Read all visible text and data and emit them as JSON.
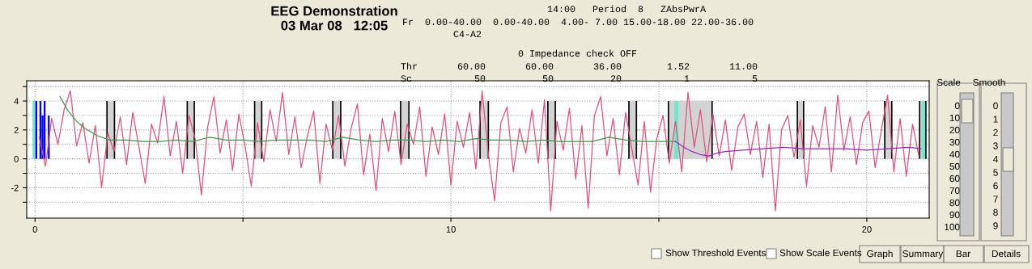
{
  "chart_data": {
    "type": "line",
    "title": "EEG Demonstration",
    "subtitle": "03 Mar 08   12:05",
    "annotations": [
      "14:00   Period  8   ZAbsPwrA",
      "Fr  0.00-40.00  0.00-40.00  4.00- 7.00 15.00-18.00 22.00-36.00",
      "C4-A2",
      "0 Impedance check OFF",
      "Thr       60.00       60.00       36.00        1.52       11.00",
      "Sc           50          50          20           1           5",
      "Scale",
      "0",
      "10",
      "20",
      "30",
      "40",
      "50",
      "60",
      "70",
      "80",
      "90",
      "100",
      "Smooth",
      "0",
      "1",
      "2",
      "3",
      "4",
      "5",
      "6",
      "7",
      "8",
      "9",
      "Show Threshold Events",
      "Show Scale Events",
      "Graph",
      "Summary",
      "Bar",
      "Details"
    ],
    "xlim": [
      -0.2,
      21.5
    ],
    "ylim": [
      -4.1,
      5.4
    ],
    "xticks": [
      0,
      {
        "value": 5,
        "label": null
      },
      10,
      {
        "value": 15,
        "label": null
      },
      20
    ],
    "yticks": [
      {
        "value": -3,
        "label": null
      },
      -2,
      {
        "value": -1,
        "label": null
      },
      0,
      {
        "value": 1,
        "label": null
      },
      2,
      {
        "value": 3,
        "label": null
      },
      4,
      {
        "value": 5,
        "label": null
      }
    ],
    "grid": true,
    "legend": false,
    "marker": "none",
    "line_style": "solid",
    "series": [
      {
        "type": "area",
        "color": "#d3d3d3",
        "x": [
          1.73,
          1.91,
          1.95,
          3.66,
          3.83,
          3.9,
          5.28,
          5.45,
          5.5,
          7.16,
          7.35,
          7.4,
          8.79,
          8.99,
          9.0,
          10.7,
          10.9,
          11.0,
          12.33,
          12.51,
          12.6,
          14.28,
          14.46,
          14.5,
          15.23,
          16.28,
          16.3,
          18.33,
          18.48,
          18.5,
          20.43,
          20.6,
          20.7,
          21.27,
          21.42
        ],
        "values": [
          4,
          4,
          null,
          4,
          4,
          null,
          4,
          4,
          null,
          4,
          4,
          null,
          4,
          4,
          null,
          4,
          4,
          null,
          4,
          4,
          null,
          4,
          4,
          null,
          4,
          4,
          null,
          4,
          4,
          null,
          4,
          4,
          null,
          4,
          4
        ]
      },
      {
        "type": "area",
        "color": "#70e8d0",
        "x": [
          -0.06,
          0.0,
          0.1,
          15.37,
          15.47,
          15.5,
          21.32,
          21.42
        ],
        "values": [
          4,
          4,
          null,
          4,
          4,
          null,
          4,
          4
        ]
      },
      {
        "type": "bar",
        "color": "#0000ff",
        "x": [
          0.03,
          0.08,
          0.13,
          0.18,
          0.23,
          0.28,
          0.33
        ],
        "values": [
          4,
          null,
          4,
          3,
          4,
          null,
          3
        ]
      },
      {
        "color": "#e0507a",
        "x": [
          0.1,
          0.25,
          0.4,
          0.55,
          0.7,
          0.85,
          1,
          1.15,
          1.3,
          1.45,
          1.6,
          1.75,
          1.9,
          2.05,
          2.2,
          2.35,
          2.5,
          2.65,
          2.8,
          2.95,
          3.1,
          3.25,
          3.4,
          3.55,
          3.7,
          3.85,
          4,
          4.15,
          4.3,
          4.45,
          4.6,
          4.75,
          4.9,
          5.05,
          5.2,
          5.35,
          5.5,
          5.65,
          5.8,
          5.95,
          6.1,
          6.25,
          6.4,
          6.55,
          6.7,
          6.85,
          7,
          7.15,
          7.3,
          7.45,
          7.6,
          7.75,
          7.9,
          8.05,
          8.2,
          8.35,
          8.5,
          8.65,
          8.8,
          8.95,
          9.1,
          9.25,
          9.4,
          9.55,
          9.7,
          9.85,
          10,
          10.15,
          10.3,
          10.45,
          10.6,
          10.75,
          10.9,
          11.05,
          11.2,
          11.35,
          11.5,
          11.65,
          11.8,
          11.95,
          12.1,
          12.25,
          12.4,
          12.55,
          12.7,
          12.85,
          13,
          13.15,
          13.3,
          13.45,
          13.6,
          13.75,
          13.9,
          14.05,
          14.2,
          14.35,
          14.5,
          14.65,
          14.8,
          14.95,
          15.1,
          15.25,
          15.4,
          15.55,
          15.7,
          15.85,
          16,
          16.15,
          16.3,
          16.45,
          16.6,
          16.75,
          16.9,
          17.05,
          17.2,
          17.35,
          17.5,
          17.65,
          17.8,
          17.95,
          18.1,
          18.25,
          18.4,
          18.55,
          18.7,
          18.85,
          19,
          19.15,
          19.3,
          19.45,
          19.6,
          19.75,
          19.9,
          20.05,
          20.2,
          20.35,
          20.5,
          20.65,
          20.8,
          20.95,
          21.1,
          21.25
        ],
        "values": [
          1.5,
          -0.5,
          2.8,
          1.0,
          3.4,
          4.7,
          0.9,
          2.5,
          -0.3,
          2.3,
          -2.0,
          1.8,
          0.5,
          2.9,
          -0.4,
          3.2,
          0.8,
          -1.7,
          2.4,
          1.1,
          4.3,
          0.2,
          2.6,
          -1.0,
          3.0,
          1.4,
          -2.5,
          2.2,
          4.3,
          0.4,
          2.7,
          -0.8,
          3.1,
          0.9,
          -1.9,
          2.5,
          -0.2,
          3.4,
          1.2,
          4.6,
          0.3,
          2.9,
          -0.6,
          1.6,
          3.3,
          -1.7,
          2.4,
          0.6,
          3.0,
          -0.5,
          2.1,
          3.8,
          -1.1,
          1.7,
          -2.2,
          2.8,
          0.5,
          3.3,
          -0.4,
          2.4,
          1.0,
          3.6,
          -1.2,
          2.2,
          0.3,
          3.1,
          -1.8,
          2.6,
          0.8,
          3.2,
          -0.7,
          4.7,
          0.3,
          -2.9,
          2.5,
          3.6,
          -0.9,
          2.1,
          0.4,
          3.4,
          -0.3,
          4.1,
          -3.6,
          2.6,
          0.6,
          3.5,
          -1.4,
          2.3,
          -3.4,
          3.0,
          4.3,
          0.2,
          2.8,
          -1.1,
          3.2,
          0.7,
          -1.8,
          2.6,
          -2.3,
          1.4,
          3.0,
          -0.3,
          2.6,
          -0.9,
          4.6,
          0.8,
          3.4,
          -0.2,
          3.1,
          0.2,
          2.7,
          -0.8,
          2.2,
          3.1,
          0.3,
          2.6,
          -1.3,
          2.4,
          -3.6,
          2.0,
          3.0,
          0.1,
          2.7,
          -1.9,
          2.3,
          0.8,
          3.6,
          -0.9,
          4.4,
          0.6,
          2.9,
          -0.4,
          2.5,
          3.3,
          -0.6,
          2.0,
          4.4,
          -0.9,
          2.8,
          -1.2,
          2.4,
          0.2
        ]
      },
      {
        "color": "#3a9a4a",
        "x": [
          0.6,
          0.8,
          1.0,
          1.2,
          1.5,
          1.8,
          2.2,
          2.6,
          3.0,
          3.4,
          3.8,
          4.2,
          4.6,
          5.0,
          5.4,
          5.8,
          6.2,
          6.6,
          7.0,
          7.4,
          7.8,
          8.2,
          8.6,
          9.0,
          9.4,
          9.8,
          10.2,
          10.6,
          11.0,
          11.4,
          11.8,
          12.2,
          12.6,
          13.0,
          13.4,
          13.8,
          14.2,
          14.6,
          15.0,
          15.4
        ],
        "values": [
          4.3,
          3.3,
          2.6,
          2.1,
          1.6,
          1.3,
          1.3,
          1.2,
          1.2,
          1.3,
          1.2,
          1.5,
          1.3,
          1.3,
          1.2,
          1.3,
          1.3,
          1.3,
          1.2,
          1.5,
          1.3,
          1.2,
          1.3,
          1.3,
          1.2,
          1.3,
          1.2,
          1.4,
          1.3,
          1.3,
          1.2,
          1.3,
          1.2,
          1.2,
          1.2,
          1.5,
          1.3,
          1.2,
          1.2,
          1.2
        ]
      },
      {
        "color": "#a020c8",
        "x": [
          15.4,
          15.6,
          15.8,
          16.0,
          16.2,
          16.4,
          16.6,
          17.0,
          17.5,
          18.0,
          18.5,
          19.0,
          19.5,
          20.0,
          20.5,
          21.0,
          21.3
        ],
        "values": [
          1.2,
          0.8,
          0.5,
          0.3,
          0.2,
          0.4,
          0.5,
          0.6,
          0.7,
          0.8,
          0.7,
          0.7,
          0.7,
          0.6,
          0.7,
          0.8,
          0.7
        ]
      }
    ]
  }
}
